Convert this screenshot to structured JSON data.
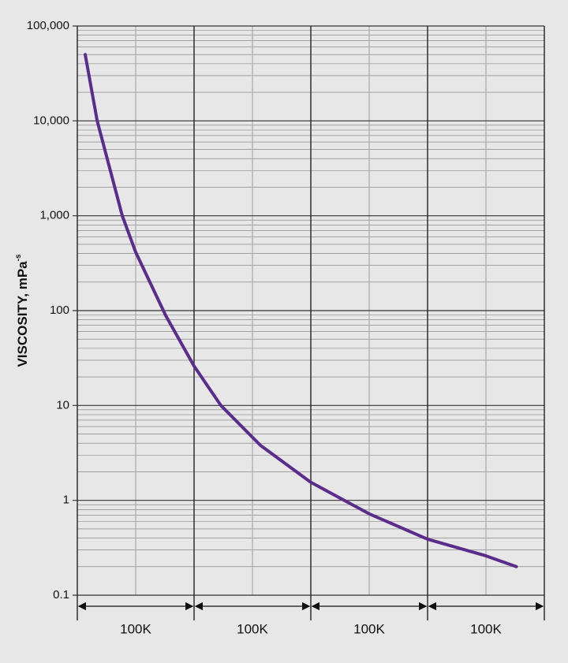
{
  "chart_data": {
    "type": "line",
    "y_label": "VISCOSITY, mPa",
    "y_label_sup": "-s",
    "segment_labels": [
      "100K",
      "100K",
      "100K",
      "100K"
    ],
    "xlim": [
      0,
      400000
    ],
    "ylim": [
      0.1,
      100000
    ],
    "y_log": true,
    "yticks": [
      0.1,
      1,
      10,
      100,
      {
        "value": 1000,
        "label": "1,000"
      },
      {
        "value": 10000,
        "label": "10,000"
      },
      {
        "value": 100000,
        "label": "100,000"
      }
    ],
    "grid": true,
    "series": [
      {
        "color": "#5a2d8c",
        "x": [
          6757,
          17000,
          38500,
          50000,
          75700,
          100000,
          123000,
          156800,
          200000,
          250000,
          300000,
          350000,
          376000
        ],
        "values": [
          50000,
          10000,
          1000,
          413,
          89,
          26,
          10,
          3.8,
          1.55,
          0.72,
          0.39,
          0.26,
          0.2
        ]
      }
    ]
  }
}
